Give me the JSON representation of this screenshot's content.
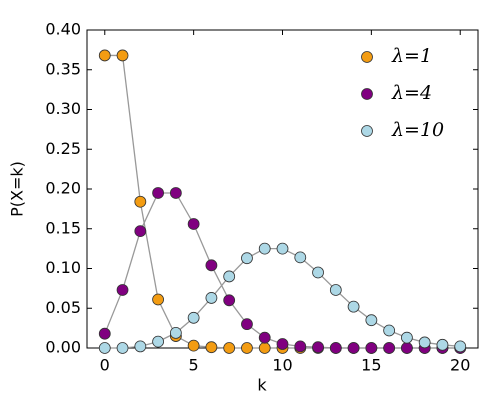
{
  "chart_data": {
    "type": "line",
    "xlabel": "k",
    "ylabel": "P(X=k)",
    "x": [
      0,
      1,
      2,
      3,
      4,
      5,
      6,
      7,
      8,
      9,
      10,
      11,
      12,
      13,
      14,
      15,
      16,
      17,
      18,
      19,
      20
    ],
    "series": [
      {
        "name": "λ=1",
        "color": "#f39c12",
        "values": [
          0.368,
          0.368,
          0.184,
          0.061,
          0.015,
          0.003,
          0.001,
          0,
          0,
          0,
          0,
          0,
          0,
          0,
          0,
          0,
          0,
          0,
          0,
          0,
          0
        ]
      },
      {
        "name": "λ=4",
        "color": "#800080",
        "values": [
          0.018,
          0.073,
          0.147,
          0.195,
          0.195,
          0.156,
          0.104,
          0.06,
          0.03,
          0.013,
          0.005,
          0.002,
          0.001,
          0,
          0,
          0,
          0,
          0,
          0,
          0,
          0
        ]
      },
      {
        "name": "λ=10",
        "color": "#add8e6",
        "values": [
          0,
          0,
          0.002,
          0.008,
          0.019,
          0.038,
          0.063,
          0.09,
          0.113,
          0.125,
          0.125,
          0.114,
          0.095,
          0.073,
          0.052,
          0.035,
          0.022,
          0.013,
          0.007,
          0.004,
          0.002
        ]
      }
    ],
    "xlim": [
      -1,
      21
    ],
    "xticks": [
      0,
      5,
      10,
      15,
      20
    ],
    "ylim": [
      0,
      0.4
    ],
    "yticks": [
      {
        "value": 0,
        "label": "0.00"
      },
      {
        "value": 0.05,
        "label": "0.05"
      },
      {
        "value": 0.1,
        "label": "0.10"
      },
      {
        "value": 0.15,
        "label": "0.15"
      },
      {
        "value": 0.2,
        "label": "0.20"
      },
      {
        "value": 0.25,
        "label": "0.25"
      },
      {
        "value": 0.3,
        "label": "0.30"
      },
      {
        "value": 0.35,
        "label": "0.35"
      },
      {
        "value": 0.4,
        "label": "0.40"
      }
    ],
    "line_color": "#999999",
    "legend": "upper right",
    "grid": false
  }
}
